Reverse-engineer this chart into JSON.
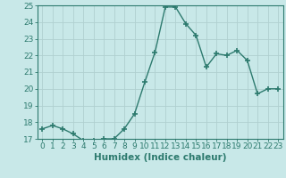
{
  "x": [
    0,
    1,
    2,
    3,
    4,
    5,
    6,
    7,
    8,
    9,
    10,
    11,
    12,
    13,
    14,
    15,
    16,
    17,
    18,
    19,
    20,
    21,
    22,
    23
  ],
  "y": [
    17.6,
    17.8,
    17.6,
    17.3,
    16.9,
    16.9,
    17.0,
    17.0,
    17.6,
    18.5,
    20.4,
    22.2,
    24.9,
    24.9,
    23.9,
    23.2,
    21.3,
    22.1,
    22.0,
    22.3,
    21.7,
    19.7,
    20.0,
    20.0
  ],
  "line_color": "#2d7a6e",
  "marker": "+",
  "marker_size": 4,
  "marker_lw": 1.2,
  "bg_color": "#c8e8e8",
  "grid_color": "#b0d0d0",
  "xlabel": "Humidex (Indice chaleur)",
  "ylim": [
    17,
    25
  ],
  "xlim": [
    -0.5,
    23.5
  ],
  "yticks": [
    17,
    18,
    19,
    20,
    21,
    22,
    23,
    24,
    25
  ],
  "xticks": [
    0,
    1,
    2,
    3,
    4,
    5,
    6,
    7,
    8,
    9,
    10,
    11,
    12,
    13,
    14,
    15,
    16,
    17,
    18,
    19,
    20,
    21,
    22,
    23
  ],
  "xtick_labels": [
    "0",
    "1",
    "2",
    "3",
    "4",
    "5",
    "6",
    "7",
    "8",
    "9",
    "10",
    "11",
    "12",
    "13",
    "14",
    "15",
    "16",
    "17",
    "18",
    "19",
    "20",
    "21",
    "22",
    "23"
  ],
  "tick_fontsize": 6.5,
  "label_fontsize": 7.5,
  "label_color": "#2d7a6e",
  "tick_color": "#2d7a6e",
  "spine_color": "#2d7a6e",
  "linewidth": 1.0
}
